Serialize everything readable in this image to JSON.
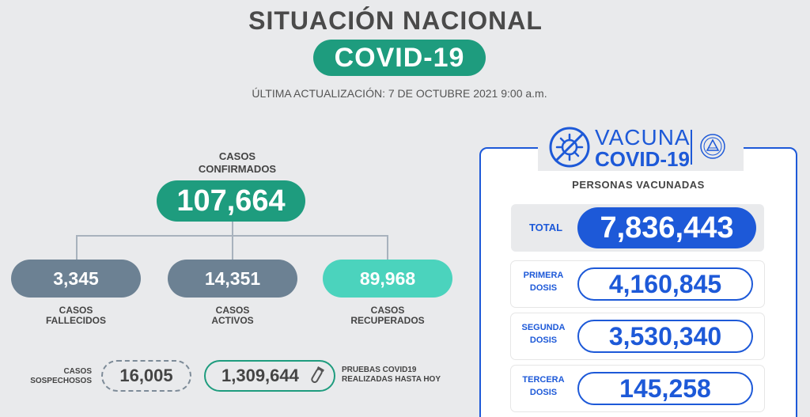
{
  "header": {
    "title": "SITUACIÓN NACIONAL",
    "badge": "COVID-19",
    "updated": "ÚLTIMA ACTUALIZACIÓN: 7 DE OCTUBRE 2021 9:00 a.m."
  },
  "confirmed": {
    "label_line1": "CASOS",
    "label_line2": "CONFIRMADOS",
    "value": "107,664"
  },
  "breakdown": [
    {
      "value": "3,345",
      "label_line1": "CASOS",
      "label_line2": "FALLECIDOS"
    },
    {
      "value": "14,351",
      "label_line1": "CASOS",
      "label_line2": "ACTIVOS"
    },
    {
      "value": "89,968",
      "label_line1": "CASOS",
      "label_line2": "RECUPERADOS"
    }
  ],
  "suspects": {
    "label_line1": "CASOS",
    "label_line2": "SOSPECHOSOS",
    "value": "16,005"
  },
  "tests": {
    "value": "1,309,644",
    "label_line1": "PRUEBAS COVID19",
    "label_line2": "REALIZADAS HASTA HOY"
  },
  "vaccine": {
    "logo_line1": "VACUNA",
    "logo_line2": "COVID-19",
    "heading": "PERSONAS VACUNADAS",
    "total_label": "TOTAL",
    "total_value": "7,836,443",
    "doses": [
      {
        "label_line1": "PRIMERA",
        "label_line2": "DOSIS",
        "value": "4,160,845"
      },
      {
        "label_line1": "SEGUNDA",
        "label_line2": "DOSIS",
        "value": "3,530,340"
      },
      {
        "label_line1": "TERCERA",
        "label_line2": "DOSIS",
        "value": "145,258"
      }
    ]
  },
  "colors": {
    "accent_green": "#1e9c7e",
    "accent_teal": "#4bd3bd",
    "slate": "#6c8193",
    "vaccine_blue": "#1d59d8"
  },
  "icons": [
    "virus-icon",
    "seal-icon",
    "test-tube-icon"
  ]
}
